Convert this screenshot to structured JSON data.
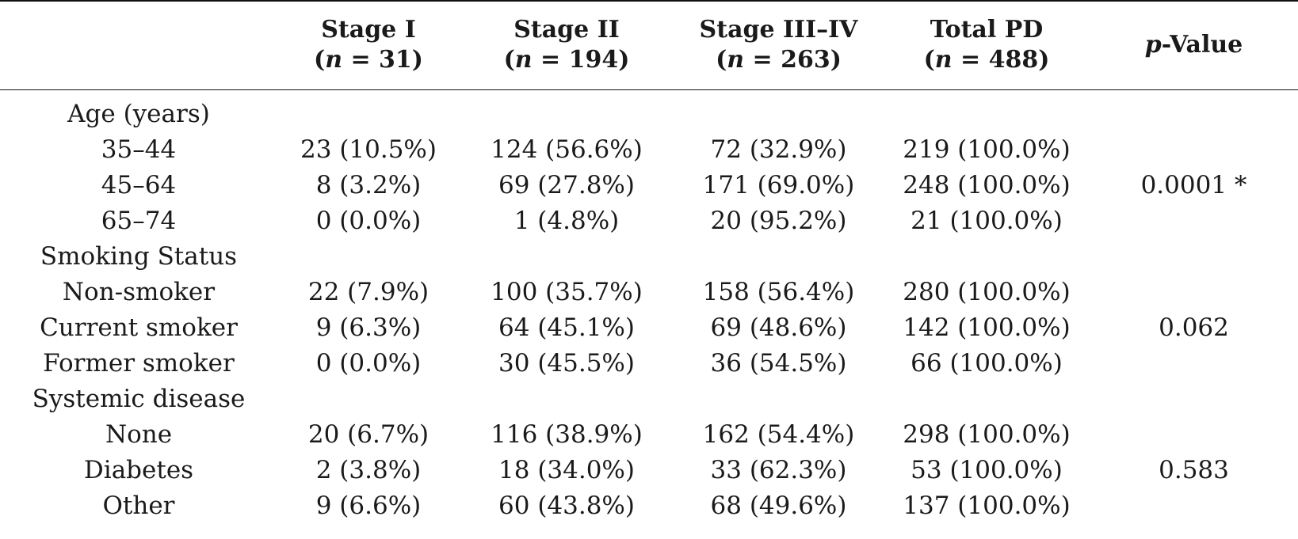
{
  "header": {
    "stage1": {
      "title": "Stage I",
      "n_prefix": "(",
      "n_italic": "n",
      "n_suffix": " = 31)"
    },
    "stage2": {
      "title": "Stage II",
      "n_prefix": "(",
      "n_italic": "n",
      "n_suffix": " = 194)"
    },
    "stage34": {
      "title": "Stage III–IV",
      "n_prefix": "(",
      "n_italic": "n",
      "n_suffix": " = 263)"
    },
    "total": {
      "title": "Total PD",
      "n_prefix": "(",
      "n_italic": "n",
      "n_suffix": " = 488)"
    },
    "pvalue": {
      "italic": "p",
      "rest": "-Value"
    }
  },
  "sections": [
    {
      "title": "Age (years)",
      "pvalue": "0.0001 *",
      "rows": [
        {
          "label": "35–44",
          "s1": "23 (10.5%)",
          "s2": "124 (56.6%)",
          "s34": "72 (32.9%)",
          "total": "219 (100.0%)"
        },
        {
          "label": "45–64",
          "s1": "8 (3.2%)",
          "s2": "69 (27.8%)",
          "s34": "171 (69.0%)",
          "total": "248 (100.0%)"
        },
        {
          "label": "65–74",
          "s1": "0 (0.0%)",
          "s2": "1 (4.8%)",
          "s34": "20 (95.2%)",
          "total": "21 (100.0%)"
        }
      ]
    },
    {
      "title": "Smoking Status",
      "pvalue": "0.062",
      "rows": [
        {
          "label": "Non-smoker",
          "s1": "22 (7.9%)",
          "s2": "100 (35.7%)",
          "s34": "158 (56.4%)",
          "total": "280 (100.0%)"
        },
        {
          "label": "Current smoker",
          "s1": "9 (6.3%)",
          "s2": "64 (45.1%)",
          "s34": "69 (48.6%)",
          "total": "142 (100.0%)"
        },
        {
          "label": "Former smoker",
          "s1": "0 (0.0%)",
          "s2": "30 (45.5%)",
          "s34": "36 (54.5%)",
          "total": "66 (100.0%)"
        }
      ]
    },
    {
      "title": "Systemic disease",
      "pvalue": "0.583",
      "rows": [
        {
          "label": "None",
          "s1": "20 (6.7%)",
          "s2": "116 (38.9%)",
          "s34": "162 (54.4%)",
          "total": "298 (100.0%)"
        },
        {
          "label": "Diabetes",
          "s1": "2 (3.8%)",
          "s2": "18 (34.0%)",
          "s34": "33 (62.3%)",
          "total": "53 (100.0%)"
        },
        {
          "label": "Other",
          "s1": "9 (6.6%)",
          "s2": "60 (43.8%)",
          "s34": "68 (49.6%)",
          "total": "137 (100.0%)"
        }
      ]
    }
  ]
}
